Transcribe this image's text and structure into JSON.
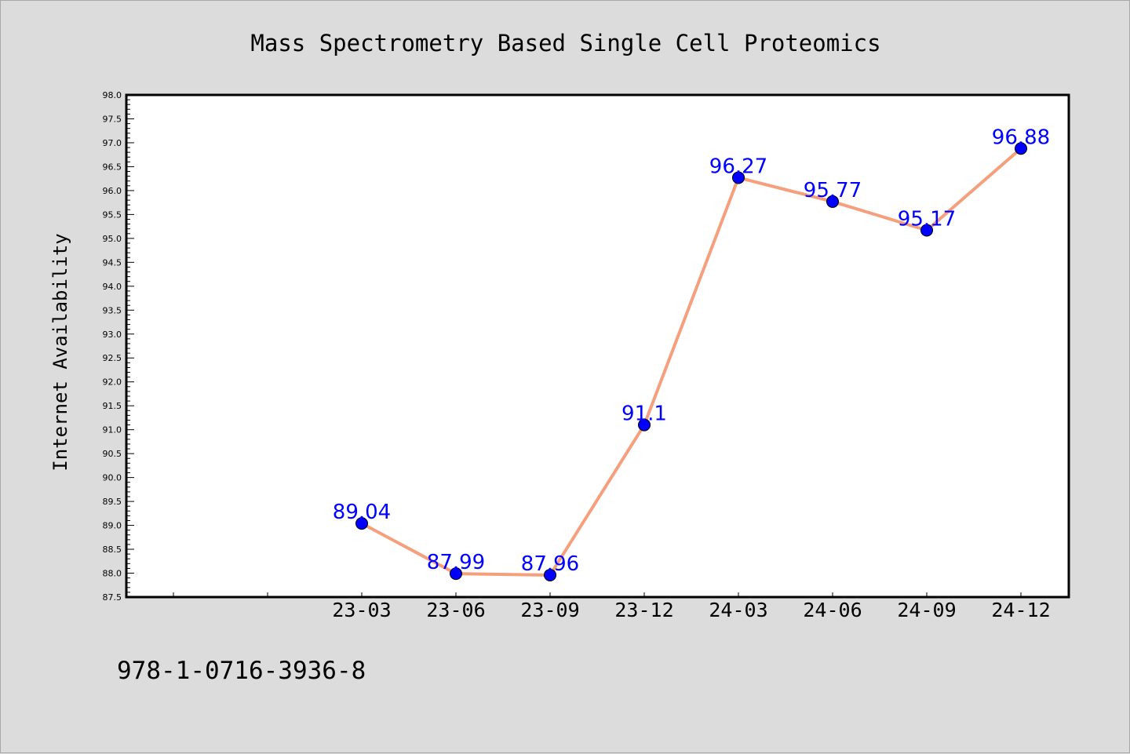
{
  "colors": {
    "background": "#dcdcdc",
    "plot_background": "#ffffff",
    "line": "#f59f7d",
    "marker": "#0000ff",
    "data_label": "#0000ff"
  },
  "footer": {
    "isbn": "978-1-0716-3936-8"
  },
  "chart_data": {
    "type": "line",
    "title": "Mass Spectrometry Based Single Cell Proteomics",
    "xlabel": "",
    "ylabel": "Internet Availability",
    "categories": [
      "23-03",
      "23-06",
      "23-09",
      "23-12",
      "24-03",
      "24-06",
      "24-09",
      "24-12"
    ],
    "series": [
      {
        "values": [
          89.04,
          87.99,
          87.96,
          91.1,
          96.27,
          95.77,
          95.17,
          96.88
        ]
      }
    ],
    "data_labels": [
      "89.04",
      "87.99",
      "87.96",
      "91.1",
      "96.27",
      "95.77",
      "95.17",
      "96.88"
    ],
    "ylim": [
      87.5,
      98.0
    ],
    "yticks": [
      "87.5",
      "88.0",
      "88.5",
      "89.0",
      "89.5",
      "90.0",
      "90.5",
      "91.0",
      "91.5",
      "92.0",
      "92.5",
      "93.0",
      "93.5",
      "94.0",
      "94.5",
      "95.0",
      "95.5",
      "96.0",
      "96.5",
      "97.0",
      "97.5",
      "98.0"
    ],
    "grid": false,
    "legend": "none"
  }
}
